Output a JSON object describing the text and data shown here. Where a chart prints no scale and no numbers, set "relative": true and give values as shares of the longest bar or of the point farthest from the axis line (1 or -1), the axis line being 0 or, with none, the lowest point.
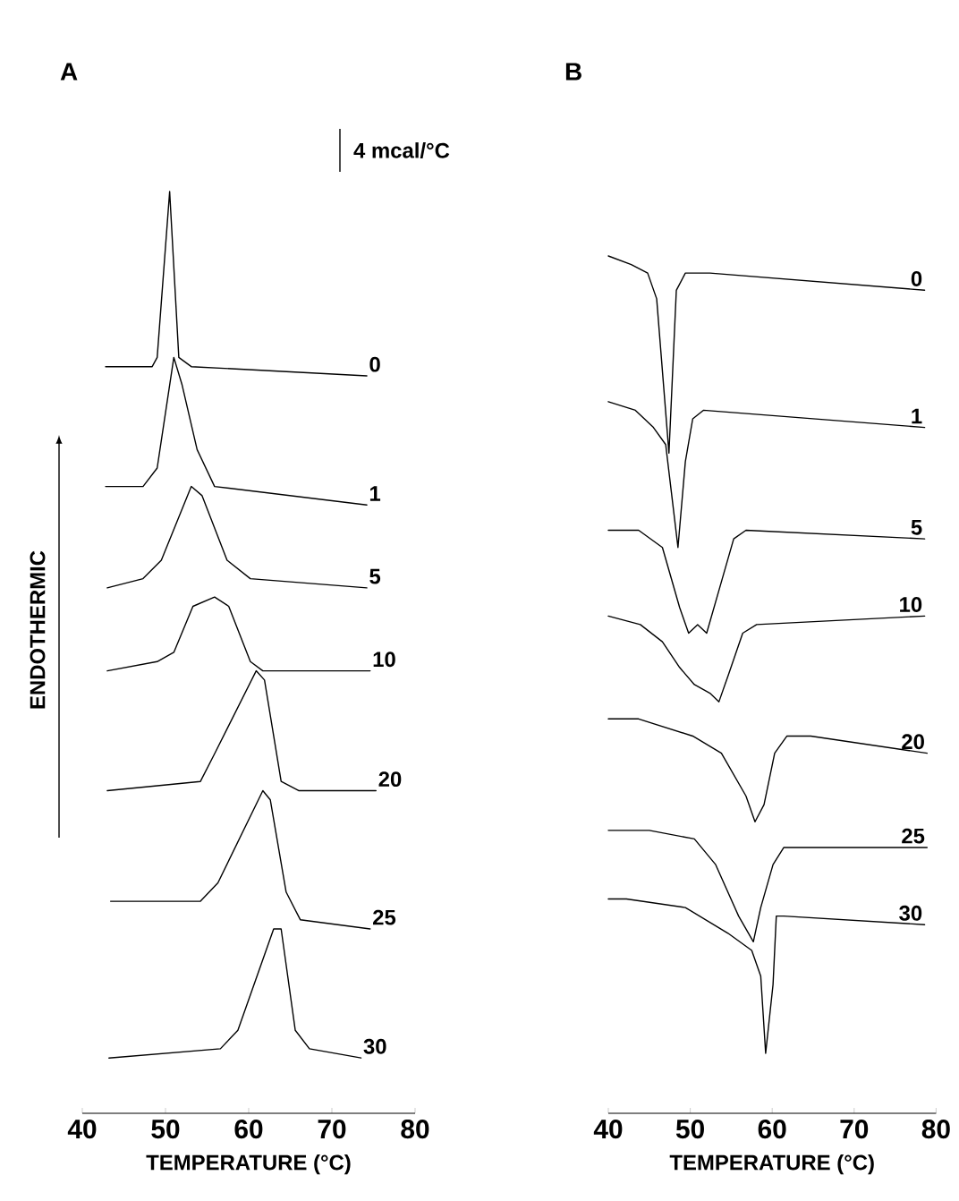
{
  "chart_data": [
    {
      "type": "line",
      "title": "A",
      "xlabel": "TEMPERATURE (°C)",
      "ylabel": "ENDOTHERMIC",
      "annotations": [
        "4 mcal/°C"
      ],
      "relative": true,
      "xlim": [
        40,
        80
      ],
      "xticks": [
        40,
        50,
        60,
        70,
        80
      ],
      "legend": false,
      "grid": false,
      "marker": "none",
      "line_style": "solid",
      "series": [
        {
          "name": "0",
          "color": "#000000",
          "x": [
            42.8,
            48.4,
            49.0,
            50.5,
            51.6,
            53.1,
            74.2
          ],
          "values": [
            0.81,
            0.81,
            0.82,
            1.0,
            0.82,
            0.81,
            0.8
          ]
        },
        {
          "name": "1",
          "color": "#000000",
          "x": [
            42.8,
            47.3,
            49.0,
            51.0,
            52.0,
            53.8,
            55.9,
            74.2
          ],
          "values": [
            0.68,
            0.68,
            0.7,
            0.82,
            0.79,
            0.72,
            0.68,
            0.66
          ]
        },
        {
          "name": "5",
          "color": "#000000",
          "x": [
            43.0,
            47.3,
            49.5,
            53.1,
            54.4,
            57.4,
            60.2,
            74.2
          ],
          "values": [
            0.57,
            0.58,
            0.6,
            0.68,
            0.67,
            0.6,
            0.58,
            0.57
          ]
        },
        {
          "name": "10",
          "color": "#000000",
          "x": [
            43.0,
            49.0,
            51.0,
            53.3,
            55.9,
            57.6,
            60.2,
            61.7,
            74.6
          ],
          "values": [
            0.48,
            0.49,
            0.5,
            0.55,
            0.56,
            0.55,
            0.49,
            0.48,
            0.48
          ]
        },
        {
          "name": "20",
          "color": "#000000",
          "x": [
            43.0,
            54.2,
            55.9,
            60.9,
            61.9,
            63.9,
            66.0,
            75.3
          ],
          "values": [
            0.35,
            0.36,
            0.39,
            0.48,
            0.47,
            0.36,
            0.35,
            0.35
          ]
        },
        {
          "name": "25",
          "color": "#000000",
          "x": [
            43.4,
            54.2,
            56.3,
            61.7,
            62.6,
            64.5,
            66.2,
            74.6
          ],
          "values": [
            0.23,
            0.23,
            0.25,
            0.35,
            0.34,
            0.24,
            0.21,
            0.2
          ]
        },
        {
          "name": "30",
          "color": "#000000",
          "x": [
            43.2,
            56.6,
            58.7,
            63.0,
            63.9,
            65.6,
            67.3,
            73.5
          ],
          "values": [
            0.06,
            0.07,
            0.09,
            0.2,
            0.2,
            0.09,
            0.07,
            0.06
          ]
        }
      ]
    },
    {
      "type": "line",
      "title": "B",
      "xlabel": "TEMPERATURE (°C)",
      "relative": true,
      "xlim": [
        40,
        80
      ],
      "xticks": [
        40,
        50,
        60,
        70,
        80
      ],
      "legend": false,
      "grid": false,
      "marker": "none",
      "line_style": "solid",
      "series": [
        {
          "name": "0",
          "color": "#000000",
          "x": [
            40.0,
            42.8,
            44.8,
            45.9,
            47.4,
            48.3,
            49.4,
            52.4,
            78.6
          ],
          "values": [
            1.0,
            0.99,
            0.98,
            0.95,
            0.77,
            0.96,
            0.98,
            0.98,
            0.96
          ]
        },
        {
          "name": "1",
          "color": "#000000",
          "x": [
            40.0,
            43.3,
            45.5,
            47.0,
            48.5,
            49.4,
            50.3,
            51.6,
            78.6
          ],
          "values": [
            0.83,
            0.82,
            0.8,
            0.78,
            0.66,
            0.76,
            0.81,
            0.82,
            0.8
          ]
        },
        {
          "name": "5",
          "color": "#000000",
          "x": [
            40.0,
            43.7,
            46.6,
            48.7,
            49.8,
            50.9,
            52.0,
            53.5,
            55.3,
            56.8,
            78.6
          ],
          "values": [
            0.68,
            0.68,
            0.66,
            0.59,
            0.56,
            0.57,
            0.56,
            0.61,
            0.67,
            0.68,
            0.67
          ]
        },
        {
          "name": "10",
          "color": "#000000",
          "x": [
            40.0,
            43.9,
            46.6,
            48.7,
            50.5,
            52.4,
            53.5,
            54.6,
            56.4,
            58.1,
            78.6
          ],
          "values": [
            0.58,
            0.57,
            0.55,
            0.52,
            0.5,
            0.49,
            0.48,
            0.51,
            0.56,
            0.57,
            0.58
          ]
        },
        {
          "name": "20",
          "color": "#000000",
          "x": [
            40.0,
            43.7,
            50.3,
            53.8,
            56.8,
            57.9,
            59.0,
            60.3,
            61.8,
            64.7,
            78.9
          ],
          "values": [
            0.46,
            0.46,
            0.44,
            0.42,
            0.37,
            0.34,
            0.36,
            0.42,
            0.44,
            0.44,
            0.42
          ]
        },
        {
          "name": "25",
          "color": "#000000",
          "x": [
            40.0,
            45.0,
            50.5,
            53.1,
            55.9,
            57.7,
            58.6,
            60.1,
            61.4,
            78.9
          ],
          "values": [
            0.33,
            0.33,
            0.32,
            0.29,
            0.23,
            0.2,
            0.24,
            0.29,
            0.31,
            0.31
          ]
        },
        {
          "name": "30",
          "color": "#000000",
          "x": [
            40.0,
            42.2,
            49.4,
            54.6,
            57.5,
            58.6,
            59.2,
            60.1,
            60.5,
            61.4,
            78.6
          ],
          "values": [
            0.25,
            0.25,
            0.24,
            0.21,
            0.19,
            0.16,
            0.07,
            0.15,
            0.23,
            0.23,
            0.22
          ]
        }
      ]
    }
  ]
}
